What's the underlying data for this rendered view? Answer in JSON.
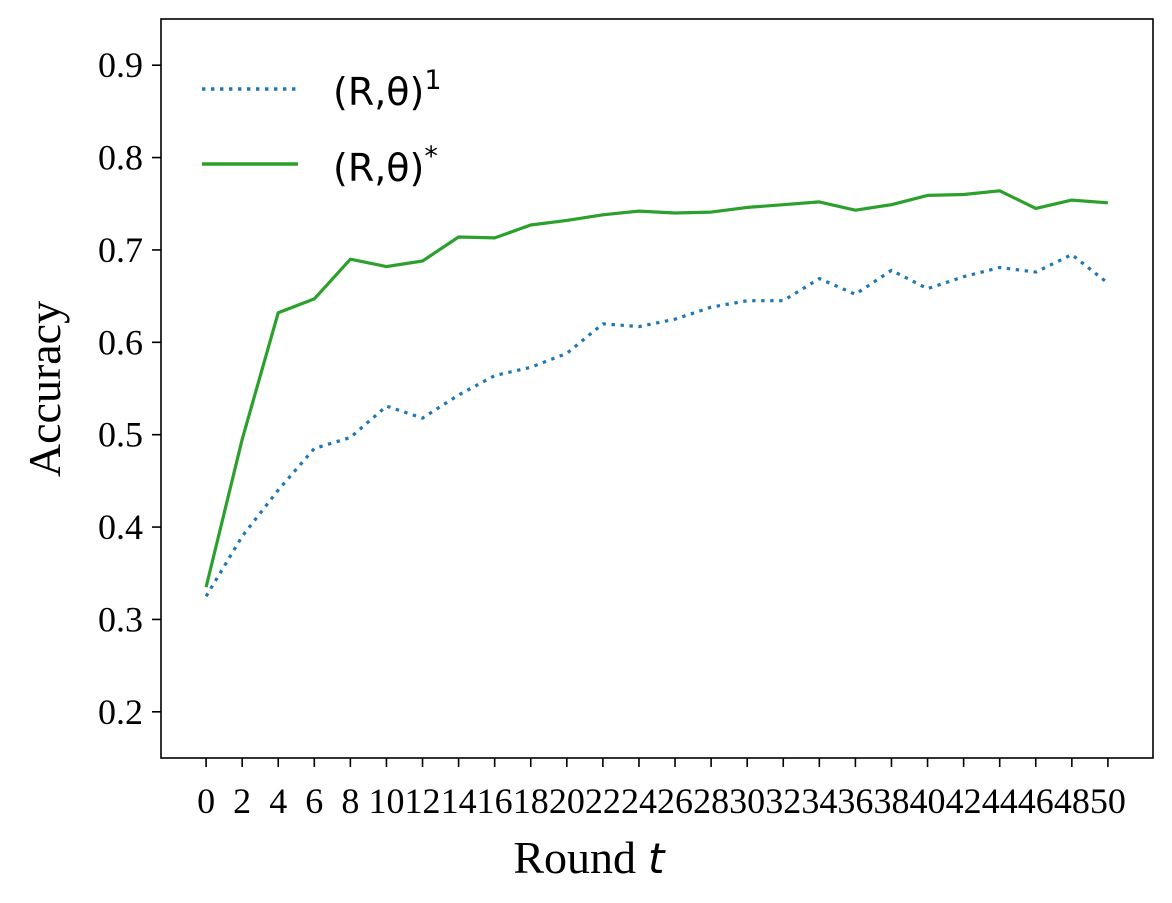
{
  "chart_data": {
    "type": "line",
    "title": "",
    "xlabel": "Round",
    "xlabel_var": "t",
    "ylabel": "Accuracy",
    "xlim": [
      -2.5,
      52.5
    ],
    "ylim": [
      0.15,
      0.95
    ],
    "xticks": [
      0,
      2,
      4,
      6,
      8,
      10,
      12,
      14,
      16,
      18,
      20,
      22,
      24,
      26,
      28,
      30,
      32,
      34,
      36,
      38,
      40,
      42,
      44,
      46,
      48,
      50
    ],
    "xtick_labels": [
      "0",
      "2",
      "4",
      "6",
      "8",
      "10",
      "12",
      "14",
      "16",
      "18",
      "20",
      "22",
      "24",
      "26",
      "28",
      "30",
      "32",
      "34",
      "36",
      "38",
      "40",
      "42",
      "44",
      "46",
      "48",
      "50"
    ],
    "yticks": [
      0.2,
      0.3,
      0.4,
      0.5,
      0.6,
      0.7,
      0.8,
      0.9
    ],
    "ytick_labels": [
      "0.2",
      "0.3",
      "0.4",
      "0.5",
      "0.6",
      "0.7",
      "0.8",
      "0.9"
    ],
    "grid": false,
    "legend_position": "top-left",
    "x": [
      0,
      2,
      4,
      6,
      8,
      10,
      12,
      14,
      16,
      18,
      20,
      22,
      24,
      26,
      28,
      30,
      32,
      34,
      36,
      38,
      40,
      42,
      44,
      46,
      48,
      50
    ],
    "series": [
      {
        "name": "(R,θ)",
        "superscript": "1",
        "style": "dotted",
        "color": "#1f77b4",
        "values": [
          0.325,
          0.39,
          0.44,
          0.485,
          0.497,
          0.531,
          0.518,
          0.543,
          0.564,
          0.573,
          0.588,
          0.62,
          0.617,
          0.625,
          0.638,
          0.645,
          0.645,
          0.669,
          0.652,
          0.678,
          0.658,
          0.671,
          0.681,
          0.676,
          0.695,
          0.664
        ]
      },
      {
        "name": "(R,θ)",
        "superscript": "*",
        "style": "solid",
        "color": "#2ca02c",
        "values": [
          0.335,
          0.495,
          0.632,
          0.647,
          0.69,
          0.682,
          0.688,
          0.714,
          0.713,
          0.727,
          0.732,
          0.738,
          0.742,
          0.74,
          0.741,
          0.746,
          0.749,
          0.752,
          0.743,
          0.749,
          0.759,
          0.76,
          0.764,
          0.745,
          0.754,
          0.751
        ]
      }
    ]
  }
}
